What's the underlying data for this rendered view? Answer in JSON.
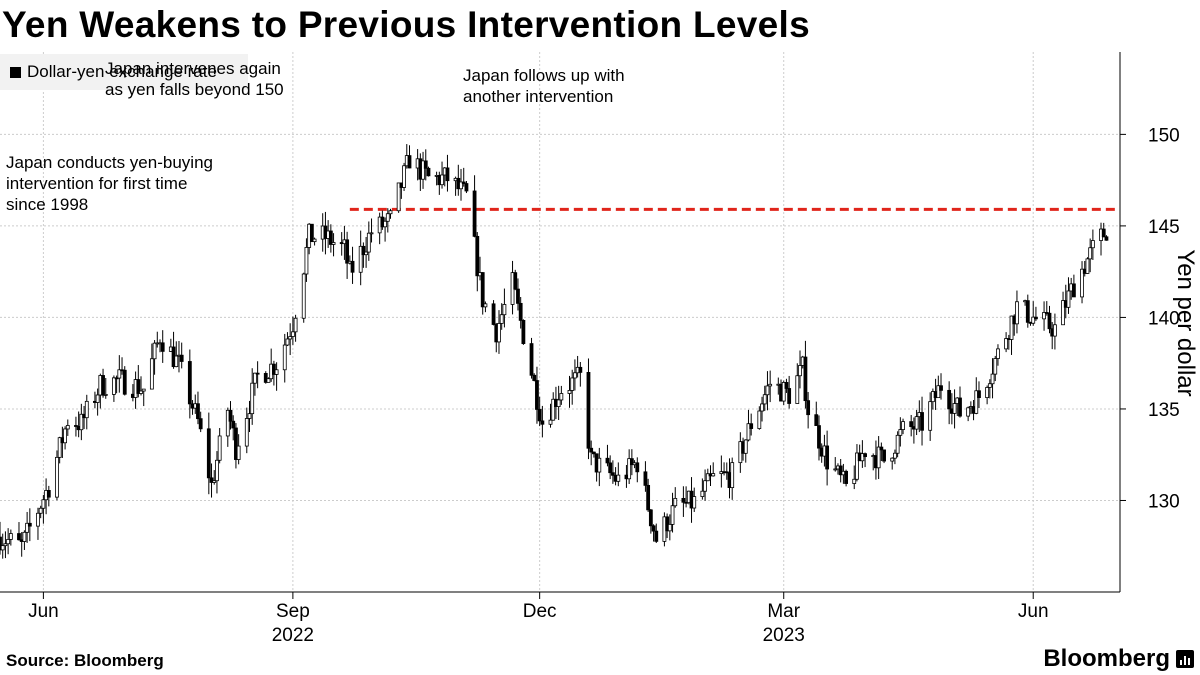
{
  "title": "Yen Weakens to Previous Intervention Levels",
  "legend_label": "Dollar-yen exchange rate",
  "annotations": {
    "first": "Japan conducts yen-buying\nintervention for first time\nsince 1998",
    "second": "Japan intervenes again\nas yen falls beyond 150",
    "third": "Japan follows up with\nanother intervention"
  },
  "source": "Source: Bloomberg",
  "brand": "Bloomberg",
  "colors": {
    "candle": "#000000",
    "reference_line": "#e0251b",
    "grid": "#cccccc"
  },
  "chart_data": {
    "type": "candlestick",
    "title": "Yen Weakens to Previous Intervention Levels",
    "ylabel": "Yen per dollar",
    "xlabel": "",
    "ylim": [
      125,
      154.5
    ],
    "xlim": [
      "2022-05-16",
      "2023-07-03"
    ],
    "y_ticks": [
      130,
      135,
      140,
      145,
      150
    ],
    "x_ticks": [
      {
        "date": "2022-06-01",
        "label": "Jun",
        "year": ""
      },
      {
        "date": "2022-09-01",
        "label": "Sep",
        "year": "2022"
      },
      {
        "date": "2022-12-01",
        "label": "Dec",
        "year": ""
      },
      {
        "date": "2023-03-01",
        "label": "Mar",
        "year": "2023"
      },
      {
        "date": "2023-06-01",
        "label": "Jun",
        "year": ""
      }
    ],
    "grid": true,
    "legend_position": "top-left",
    "reference_line": {
      "y": 145.9,
      "from": "2022-09-22",
      "style": "dashed"
    },
    "series": [
      {
        "name": "Dollar-yen exchange rate",
        "points": [
          {
            "date": "2022-05-16",
            "value": 128.0
          },
          {
            "date": "2022-05-24",
            "value": 127.5
          },
          {
            "date": "2022-06-03",
            "value": 130.8
          },
          {
            "date": "2022-06-10",
            "value": 134.4
          },
          {
            "date": "2022-06-15",
            "value": 134.2
          },
          {
            "date": "2022-06-22",
            "value": 136.3
          },
          {
            "date": "2022-06-29",
            "value": 136.6
          },
          {
            "date": "2022-07-08",
            "value": 136.1
          },
          {
            "date": "2022-07-14",
            "value": 139.0
          },
          {
            "date": "2022-07-21",
            "value": 137.4
          },
          {
            "date": "2022-07-28",
            "value": 134.3
          },
          {
            "date": "2022-08-02",
            "value": 130.8
          },
          {
            "date": "2022-08-08",
            "value": 135.0
          },
          {
            "date": "2022-08-11",
            "value": 132.9
          },
          {
            "date": "2022-08-19",
            "value": 136.8
          },
          {
            "date": "2022-08-26",
            "value": 137.5
          },
          {
            "date": "2022-09-01",
            "value": 139.7
          },
          {
            "date": "2022-09-07",
            "value": 144.4
          },
          {
            "date": "2022-09-13",
            "value": 144.4
          },
          {
            "date": "2022-09-20",
            "value": 143.7
          },
          {
            "date": "2022-09-22",
            "value": 142.4
          },
          {
            "date": "2022-09-30",
            "value": 144.7
          },
          {
            "date": "2022-10-07",
            "value": 145.3
          },
          {
            "date": "2022-10-14",
            "value": 148.7
          },
          {
            "date": "2022-10-21",
            "value": 147.6
          },
          {
            "date": "2022-10-28",
            "value": 147.6
          },
          {
            "date": "2022-11-04",
            "value": 146.6
          },
          {
            "date": "2022-11-10",
            "value": 141.0
          },
          {
            "date": "2022-11-15",
            "value": 139.3
          },
          {
            "date": "2022-11-21",
            "value": 141.8
          },
          {
            "date": "2022-11-25",
            "value": 139.1
          },
          {
            "date": "2022-12-02",
            "value": 134.3
          },
          {
            "date": "2022-12-09",
            "value": 136.1
          },
          {
            "date": "2022-12-16",
            "value": 136.7
          },
          {
            "date": "2022-12-20",
            "value": 132.2
          },
          {
            "date": "2022-12-30",
            "value": 131.1
          },
          {
            "date": "2023-01-06",
            "value": 132.1
          },
          {
            "date": "2023-01-13",
            "value": 127.9
          },
          {
            "date": "2023-01-20",
            "value": 129.6
          },
          {
            "date": "2023-01-27",
            "value": 129.9
          },
          {
            "date": "2023-02-03",
            "value": 131.2
          },
          {
            "date": "2023-02-10",
            "value": 131.4
          },
          {
            "date": "2023-02-17",
            "value": 134.2
          },
          {
            "date": "2023-02-24",
            "value": 136.4
          },
          {
            "date": "2023-03-03",
            "value": 135.8
          },
          {
            "date": "2023-03-08",
            "value": 137.2
          },
          {
            "date": "2023-03-10",
            "value": 135.0
          },
          {
            "date": "2023-03-17",
            "value": 132.2
          },
          {
            "date": "2023-03-24",
            "value": 130.7
          },
          {
            "date": "2023-03-31",
            "value": 132.8
          },
          {
            "date": "2023-04-07",
            "value": 132.2
          },
          {
            "date": "2023-04-14",
            "value": 133.8
          },
          {
            "date": "2023-04-21",
            "value": 134.2
          },
          {
            "date": "2023-04-28",
            "value": 136.3
          },
          {
            "date": "2023-05-05",
            "value": 134.8
          },
          {
            "date": "2023-05-12",
            "value": 135.7
          },
          {
            "date": "2023-05-19",
            "value": 138.0
          },
          {
            "date": "2023-05-26",
            "value": 140.6
          },
          {
            "date": "2023-06-02",
            "value": 139.9
          },
          {
            "date": "2023-06-09",
            "value": 139.4
          },
          {
            "date": "2023-06-16",
            "value": 141.8
          },
          {
            "date": "2023-06-23",
            "value": 143.7
          },
          {
            "date": "2023-06-28",
            "value": 144.8
          }
        ]
      }
    ]
  }
}
